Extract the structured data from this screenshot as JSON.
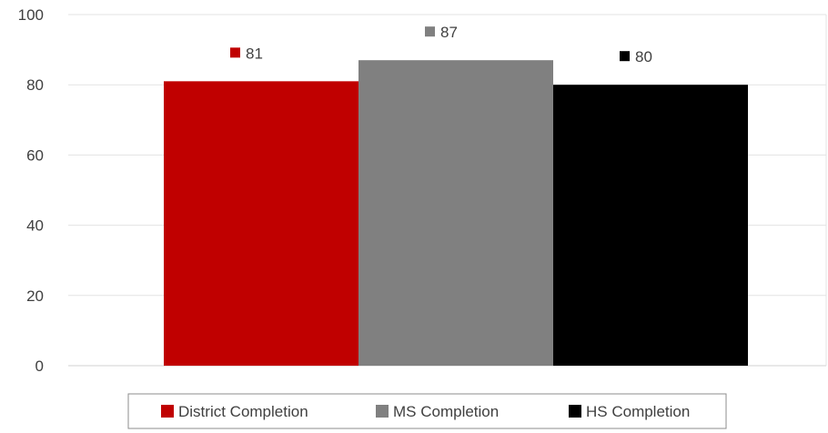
{
  "chart_data": {
    "type": "bar",
    "title": "",
    "xlabel": "",
    "ylabel": "",
    "ylim": [
      0,
      100
    ],
    "yticks": [
      0,
      20,
      40,
      60,
      80,
      100
    ],
    "grid": true,
    "legend_position": "bottom",
    "series": [
      {
        "name": "District Completion",
        "value": 81,
        "color": "#C00000"
      },
      {
        "name": "MS Completion",
        "value": 87,
        "color": "#808080"
      },
      {
        "name": "HS Completion",
        "value": 80,
        "color": "#000000"
      }
    ]
  }
}
